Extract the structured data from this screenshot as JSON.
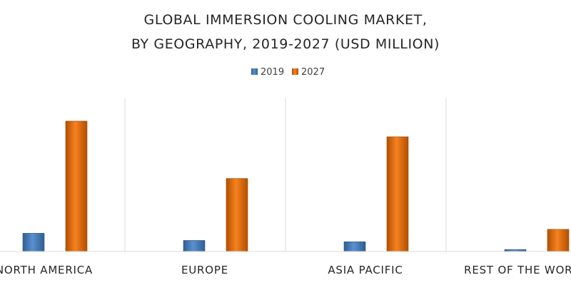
{
  "chart_data": {
    "type": "bar",
    "title_line1": "GLOBAL IMMERSION COOLING MARKET,",
    "title_line2": "BY GEOGRAPHY, 2019-2027 (USD MILLION)",
    "categories": [
      "NORTH AMERICA",
      "EUROPE",
      "ASIA PACIFIC",
      "REST OF THE WORLD"
    ],
    "series": [
      {
        "name": "2019",
        "values": [
          14,
          8.5,
          7.5,
          1.5
        ],
        "color": "#4A7EBB"
      },
      {
        "name": "2027",
        "values": [
          100,
          56,
          88,
          17
        ],
        "color": "#E46C0A"
      }
    ],
    "ylim": [
      0,
      115
    ],
    "grid": "vertical separators",
    "legend_position": "top-center",
    "xlabel": "",
    "ylabel": ""
  }
}
